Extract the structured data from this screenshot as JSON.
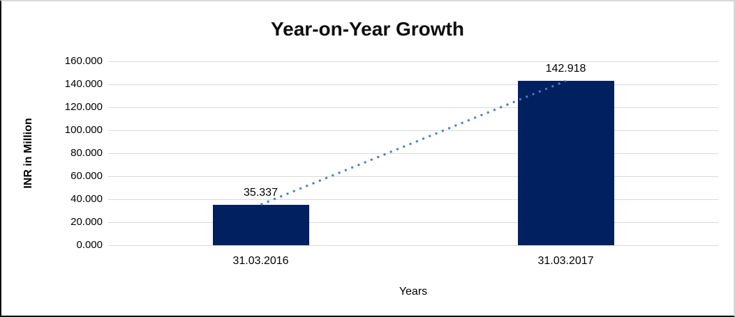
{
  "frame": {
    "background": "#ffffff"
  },
  "chart_data": {
    "type": "bar",
    "title": "Year-on-Year Growth",
    "xlabel": "Years",
    "ylabel": "INR in Million",
    "categories": [
      "31.03.2016",
      "31.03.2017"
    ],
    "values": [
      35.337,
      142.918
    ],
    "value_labels": [
      "35.337",
      "142.918"
    ],
    "ylim": [
      0,
      160
    ],
    "ytick_step": 20,
    "ytick_labels": [
      "0.000",
      "20.000",
      "40.000",
      "60.000",
      "80.000",
      "100.000",
      "120.000",
      "140.000",
      "160.000"
    ],
    "grid": true,
    "legend_position": "none",
    "trendline": {
      "type": "linear",
      "style": "dotted",
      "color": "#4a7ebb"
    },
    "colors": {
      "bar": "#002060",
      "gridline": "#d9d9d9",
      "text": "#000000",
      "title": "#0d0d0d"
    }
  }
}
